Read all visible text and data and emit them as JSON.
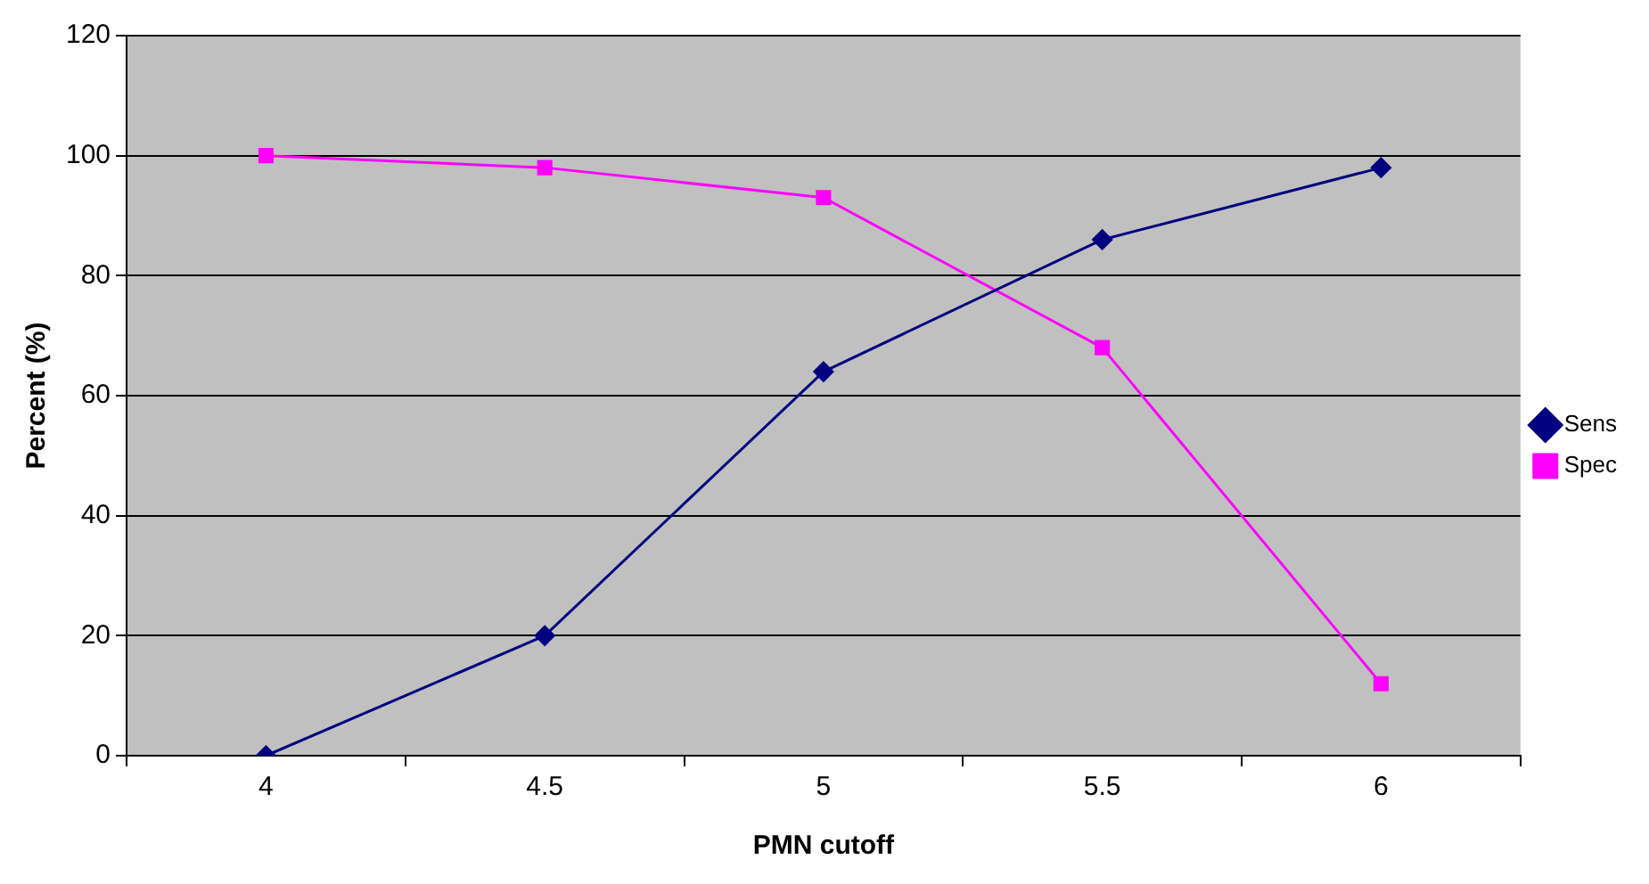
{
  "chart_data": {
    "type": "line",
    "xlabel": "PMN cutoff",
    "ylabel": "Percent (%)",
    "categories": [
      "4",
      "4.5",
      "5",
      "5.5",
      "6"
    ],
    "series": [
      {
        "name": "Sens",
        "color": "#000080",
        "marker": "diamond",
        "values": [
          0,
          20,
          64,
          86,
          98
        ]
      },
      {
        "name": "Spec",
        "color": "#ff00ff",
        "marker": "square",
        "values": [
          100,
          98,
          93,
          68,
          12
        ]
      }
    ],
    "ylim": [
      0,
      120
    ],
    "yticks": [
      0,
      20,
      40,
      60,
      80,
      100,
      120
    ],
    "grid": "y",
    "legend": "right",
    "line_style": "solid"
  }
}
